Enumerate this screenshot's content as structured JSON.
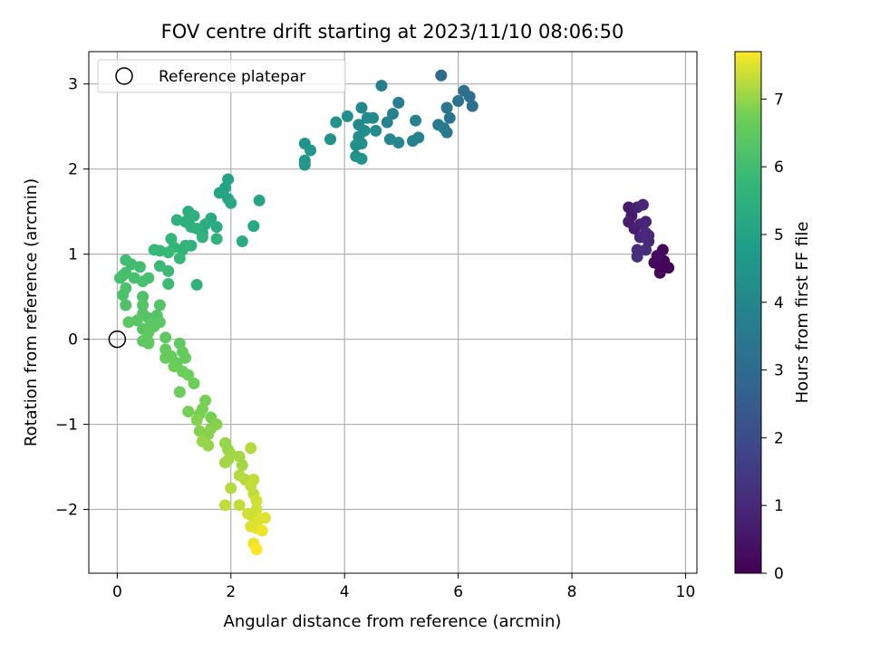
{
  "chart_data": {
    "type": "scatter",
    "title": "FOV centre drift starting at 2023/11/10 08:06:50",
    "xlabel": "Angular distance from reference (arcmin)",
    "ylabel": "Rotation from reference (arcmin)",
    "xlim": [
      -0.5,
      10.2
    ],
    "ylim": [
      -2.75,
      3.38
    ],
    "xticks": [
      0,
      2,
      4,
      6,
      8,
      10
    ],
    "yticks": [
      -2,
      -1,
      0,
      1,
      2,
      3
    ],
    "grid": true,
    "legend": {
      "location": "upper-left",
      "entries": [
        {
          "label": "Reference platepar",
          "marker": "open-circle"
        }
      ]
    },
    "reference_point": {
      "x": 0,
      "y": 0
    },
    "colorbar": {
      "label": "Hours from first FF file",
      "colormap": "viridis",
      "min": 0,
      "max": 7.7,
      "ticks": [
        0,
        1,
        2,
        3,
        4,
        5,
        6,
        7
      ]
    },
    "series": [
      {
        "color_value": "hours",
        "points": [
          {
            "x": 9.0,
            "y": 1.55,
            "h": 0.6
          },
          {
            "x": 9.0,
            "y": 1.38,
            "h": 0.7
          },
          {
            "x": 9.05,
            "y": 1.45,
            "h": 0.6
          },
          {
            "x": 9.1,
            "y": 1.3,
            "h": 0.7
          },
          {
            "x": 9.15,
            "y": 1.55,
            "h": 0.8
          },
          {
            "x": 9.2,
            "y": 1.35,
            "h": 0.8
          },
          {
            "x": 9.25,
            "y": 1.58,
            "h": 0.9
          },
          {
            "x": 9.2,
            "y": 1.2,
            "h": 0.9
          },
          {
            "x": 9.3,
            "y": 1.25,
            "h": 1.0
          },
          {
            "x": 9.35,
            "y": 1.15,
            "h": 1.0
          },
          {
            "x": 9.15,
            "y": 1.05,
            "h": 1.1
          },
          {
            "x": 9.15,
            "y": 0.97,
            "h": 1.2
          },
          {
            "x": 9.3,
            "y": 1.05,
            "h": 1.1
          },
          {
            "x": 9.35,
            "y": 1.22,
            "h": 1.0
          },
          {
            "x": 9.3,
            "y": 1.38,
            "h": 0.9
          },
          {
            "x": 9.45,
            "y": 0.9,
            "h": 0.2
          },
          {
            "x": 9.5,
            "y": 0.98,
            "h": 0.3
          },
          {
            "x": 9.55,
            "y": 0.78,
            "h": 0.1
          },
          {
            "x": 9.6,
            "y": 1.05,
            "h": 0.2
          },
          {
            "x": 9.62,
            "y": 0.92,
            "h": 0.1
          },
          {
            "x": 9.7,
            "y": 0.84,
            "h": 0.1
          },
          {
            "x": 9.52,
            "y": 0.88,
            "h": 0.15
          },
          {
            "x": 5.7,
            "y": 3.1,
            "h": 3.0
          },
          {
            "x": 6.1,
            "y": 2.92,
            "h": 3.1
          },
          {
            "x": 6.2,
            "y": 2.85,
            "h": 3.2
          },
          {
            "x": 6.25,
            "y": 2.74,
            "h": 3.2
          },
          {
            "x": 6.0,
            "y": 2.8,
            "h": 3.3
          },
          {
            "x": 5.8,
            "y": 2.72,
            "h": 3.4
          },
          {
            "x": 5.85,
            "y": 2.6,
            "h": 3.4
          },
          {
            "x": 5.75,
            "y": 2.48,
            "h": 3.5
          },
          {
            "x": 5.8,
            "y": 2.43,
            "h": 3.5
          },
          {
            "x": 5.65,
            "y": 2.52,
            "h": 3.6
          },
          {
            "x": 4.65,
            "y": 2.98,
            "h": 3.7
          },
          {
            "x": 4.95,
            "y": 2.78,
            "h": 3.7
          },
          {
            "x": 4.85,
            "y": 2.65,
            "h": 3.8
          },
          {
            "x": 4.75,
            "y": 2.55,
            "h": 3.8
          },
          {
            "x": 5.25,
            "y": 2.57,
            "h": 3.8
          },
          {
            "x": 5.3,
            "y": 2.37,
            "h": 3.9
          },
          {
            "x": 5.2,
            "y": 2.33,
            "h": 3.9
          },
          {
            "x": 4.95,
            "y": 2.31,
            "h": 4.0
          },
          {
            "x": 4.8,
            "y": 2.35,
            "h": 4.0
          },
          {
            "x": 4.3,
            "y": 2.72,
            "h": 4.0
          },
          {
            "x": 4.25,
            "y": 2.52,
            "h": 4.1
          },
          {
            "x": 4.4,
            "y": 2.6,
            "h": 4.1
          },
          {
            "x": 4.5,
            "y": 2.6,
            "h": 4.1
          },
          {
            "x": 4.55,
            "y": 2.45,
            "h": 4.2
          },
          {
            "x": 4.35,
            "y": 2.45,
            "h": 4.2
          },
          {
            "x": 4.25,
            "y": 2.38,
            "h": 4.2
          },
          {
            "x": 4.3,
            "y": 2.3,
            "h": 4.3
          },
          {
            "x": 4.2,
            "y": 2.28,
            "h": 4.3
          },
          {
            "x": 4.05,
            "y": 2.62,
            "h": 4.3
          },
          {
            "x": 3.85,
            "y": 2.55,
            "h": 4.4
          },
          {
            "x": 3.75,
            "y": 2.35,
            "h": 4.4
          },
          {
            "x": 4.2,
            "y": 2.15,
            "h": 4.4
          },
          {
            "x": 4.3,
            "y": 2.12,
            "h": 4.5
          },
          {
            "x": 3.3,
            "y": 2.3,
            "h": 4.5
          },
          {
            "x": 3.4,
            "y": 2.22,
            "h": 4.6
          },
          {
            "x": 3.3,
            "y": 2.1,
            "h": 4.6
          },
          {
            "x": 3.3,
            "y": 2.05,
            "h": 4.6
          },
          {
            "x": 1.95,
            "y": 1.88,
            "h": 5.0
          },
          {
            "x": 1.9,
            "y": 1.78,
            "h": 5.0
          },
          {
            "x": 1.8,
            "y": 1.72,
            "h": 5.1
          },
          {
            "x": 1.95,
            "y": 1.65,
            "h": 5.1
          },
          {
            "x": 2.0,
            "y": 1.6,
            "h": 5.2
          },
          {
            "x": 2.5,
            "y": 1.63,
            "h": 5.1
          },
          {
            "x": 2.4,
            "y": 1.33,
            "h": 5.2
          },
          {
            "x": 2.2,
            "y": 1.15,
            "h": 5.3
          },
          {
            "x": 1.65,
            "y": 1.42,
            "h": 5.3
          },
          {
            "x": 1.75,
            "y": 1.32,
            "h": 5.3
          },
          {
            "x": 1.55,
            "y": 1.35,
            "h": 5.4
          },
          {
            "x": 1.5,
            "y": 1.25,
            "h": 5.4
          },
          {
            "x": 1.25,
            "y": 1.5,
            "h": 5.4
          },
          {
            "x": 1.35,
            "y": 1.45,
            "h": 5.5
          },
          {
            "x": 1.2,
            "y": 1.38,
            "h": 5.5
          },
          {
            "x": 1.05,
            "y": 1.4,
            "h": 5.5
          },
          {
            "x": 1.3,
            "y": 1.32,
            "h": 5.5
          },
          {
            "x": 1.4,
            "y": 1.3,
            "h": 5.6
          },
          {
            "x": 1.5,
            "y": 1.2,
            "h": 5.6
          },
          {
            "x": 1.75,
            "y": 1.18,
            "h": 5.6
          },
          {
            "x": 1.3,
            "y": 1.1,
            "h": 5.6
          },
          {
            "x": 1.2,
            "y": 1.1,
            "h": 5.7
          },
          {
            "x": 1.15,
            "y": 1.05,
            "h": 5.7
          },
          {
            "x": 0.95,
            "y": 1.18,
            "h": 5.7
          },
          {
            "x": 1.0,
            "y": 1.08,
            "h": 5.7
          },
          {
            "x": 0.9,
            "y": 1.02,
            "h": 5.8
          },
          {
            "x": 0.75,
            "y": 1.04,
            "h": 5.8
          },
          {
            "x": 0.65,
            "y": 1.05,
            "h": 5.8
          },
          {
            "x": 1.1,
            "y": 0.95,
            "h": 5.8
          },
          {
            "x": 0.75,
            "y": 0.86,
            "h": 5.9
          },
          {
            "x": 0.9,
            "y": 0.8,
            "h": 5.9
          },
          {
            "x": 0.9,
            "y": 0.65,
            "h": 5.9
          },
          {
            "x": 1.4,
            "y": 0.64,
            "h": 5.6
          },
          {
            "x": 0.15,
            "y": 0.93,
            "h": 6.0
          },
          {
            "x": 0.25,
            "y": 0.88,
            "h": 6.0
          },
          {
            "x": 0.4,
            "y": 0.85,
            "h": 6.0
          },
          {
            "x": 0.15,
            "y": 0.78,
            "h": 6.0
          },
          {
            "x": 0.1,
            "y": 0.75,
            "h": 6.1
          },
          {
            "x": 0.05,
            "y": 0.72,
            "h": 6.1
          },
          {
            "x": 0.3,
            "y": 0.72,
            "h": 6.1
          },
          {
            "x": 0.55,
            "y": 0.72,
            "h": 6.1
          },
          {
            "x": 0.45,
            "y": 0.68,
            "h": 6.1
          },
          {
            "x": 0.15,
            "y": 0.6,
            "h": 6.2
          },
          {
            "x": 0.1,
            "y": 0.52,
            "h": 6.2
          },
          {
            "x": 0.15,
            "y": 0.4,
            "h": 6.2
          },
          {
            "x": 0.45,
            "y": 0.5,
            "h": 6.2
          },
          {
            "x": 0.45,
            "y": 0.4,
            "h": 6.3
          },
          {
            "x": 0.75,
            "y": 0.4,
            "h": 6.3
          },
          {
            "x": 0.45,
            "y": 0.3,
            "h": 6.3
          },
          {
            "x": 0.7,
            "y": 0.28,
            "h": 6.3
          },
          {
            "x": 0.55,
            "y": 0.25,
            "h": 6.3
          },
          {
            "x": 0.35,
            "y": 0.22,
            "h": 6.4
          },
          {
            "x": 0.2,
            "y": 0.2,
            "h": 6.4
          },
          {
            "x": 0.6,
            "y": 0.18,
            "h": 6.4
          },
          {
            "x": 0.75,
            "y": 0.2,
            "h": 6.4
          },
          {
            "x": 0.65,
            "y": 0.15,
            "h": 6.4
          },
          {
            "x": 0.45,
            "y": 0.12,
            "h": 6.4
          },
          {
            "x": 0.55,
            "y": 0.08,
            "h": 6.5
          },
          {
            "x": 0.45,
            "y": -0.02,
            "h": 6.5
          },
          {
            "x": 0.55,
            "y": -0.05,
            "h": 6.5
          },
          {
            "x": 0.55,
            "y": -0.03,
            "h": 6.5
          },
          {
            "x": 0.85,
            "y": 0.02,
            "h": 6.5
          },
          {
            "x": 1.1,
            "y": -0.05,
            "h": 6.5
          },
          {
            "x": 0.85,
            "y": -0.12,
            "h": 6.6
          },
          {
            "x": 1.15,
            "y": -0.15,
            "h": 6.6
          },
          {
            "x": 0.95,
            "y": -0.2,
            "h": 6.6
          },
          {
            "x": 0.85,
            "y": -0.22,
            "h": 6.6
          },
          {
            "x": 1.2,
            "y": -0.22,
            "h": 6.6
          },
          {
            "x": 1.05,
            "y": -0.28,
            "h": 6.6
          },
          {
            "x": 1.0,
            "y": -0.32,
            "h": 6.7
          },
          {
            "x": 1.15,
            "y": -0.38,
            "h": 6.7
          },
          {
            "x": 1.25,
            "y": -0.42,
            "h": 6.7
          },
          {
            "x": 1.35,
            "y": -0.52,
            "h": 6.7
          },
          {
            "x": 1.1,
            "y": -0.62,
            "h": 6.7
          },
          {
            "x": 1.55,
            "y": -0.72,
            "h": 6.8
          },
          {
            "x": 1.5,
            "y": -0.82,
            "h": 6.8
          },
          {
            "x": 1.25,
            "y": -0.85,
            "h": 6.8
          },
          {
            "x": 1.45,
            "y": -0.88,
            "h": 6.8
          },
          {
            "x": 1.65,
            "y": -0.92,
            "h": 6.8
          },
          {
            "x": 1.4,
            "y": -0.95,
            "h": 6.9
          },
          {
            "x": 1.75,
            "y": -1.0,
            "h": 6.9
          },
          {
            "x": 1.65,
            "y": -1.05,
            "h": 6.9
          },
          {
            "x": 1.45,
            "y": -1.08,
            "h": 6.9
          },
          {
            "x": 1.6,
            "y": -1.12,
            "h": 6.9
          },
          {
            "x": 1.5,
            "y": -1.2,
            "h": 7.0
          },
          {
            "x": 1.6,
            "y": -1.25,
            "h": 7.0
          },
          {
            "x": 1.9,
            "y": -1.22,
            "h": 7.0
          },
          {
            "x": 1.95,
            "y": -1.3,
            "h": 7.0
          },
          {
            "x": 2.0,
            "y": -1.35,
            "h": 7.1
          },
          {
            "x": 1.95,
            "y": -1.42,
            "h": 7.1
          },
          {
            "x": 1.9,
            "y": -1.45,
            "h": 7.1
          },
          {
            "x": 2.15,
            "y": -1.38,
            "h": 7.1
          },
          {
            "x": 2.2,
            "y": -1.48,
            "h": 7.1
          },
          {
            "x": 2.35,
            "y": -1.28,
            "h": 7.2
          },
          {
            "x": 2.15,
            "y": -1.6,
            "h": 7.2
          },
          {
            "x": 2.25,
            "y": -1.65,
            "h": 7.2
          },
          {
            "x": 2.0,
            "y": -1.75,
            "h": 7.2
          },
          {
            "x": 2.4,
            "y": -1.65,
            "h": 7.3
          },
          {
            "x": 2.35,
            "y": -1.72,
            "h": 7.3
          },
          {
            "x": 2.4,
            "y": -1.82,
            "h": 7.3
          },
          {
            "x": 2.15,
            "y": -1.95,
            "h": 7.3
          },
          {
            "x": 1.9,
            "y": -1.95,
            "h": 7.3
          },
          {
            "x": 2.45,
            "y": -1.9,
            "h": 7.4
          },
          {
            "x": 2.45,
            "y": -2.0,
            "h": 7.4
          },
          {
            "x": 2.3,
            "y": -2.05,
            "h": 7.4
          },
          {
            "x": 2.4,
            "y": -2.1,
            "h": 7.4
          },
          {
            "x": 2.5,
            "y": -2.12,
            "h": 7.5
          },
          {
            "x": 2.6,
            "y": -2.1,
            "h": 7.5
          },
          {
            "x": 2.45,
            "y": -2.22,
            "h": 7.5
          },
          {
            "x": 2.35,
            "y": -2.2,
            "h": 7.5
          },
          {
            "x": 2.55,
            "y": -2.25,
            "h": 7.6
          },
          {
            "x": 2.4,
            "y": -2.4,
            "h": 7.6
          },
          {
            "x": 2.45,
            "y": -2.47,
            "h": 7.7
          }
        ]
      }
    ]
  }
}
